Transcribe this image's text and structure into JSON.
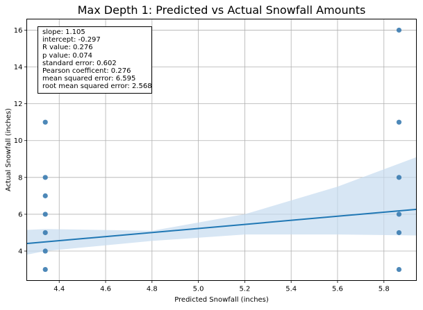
{
  "chart_data": {
    "type": "scatter",
    "title": "Max Depth 1: Predicted vs Actual Snowfall Amounts",
    "xlabel": "Predicted Snowfall (inches)",
    "ylabel": "Actual Snowfall (inches)",
    "xlim": [
      4.26,
      5.94
    ],
    "ylim": [
      2.4,
      16.6
    ],
    "xticks": [
      "4.4",
      "4.6",
      "4.8",
      "5.0",
      "5.2",
      "5.4",
      "5.6",
      "5.8"
    ],
    "yticks": [
      "4",
      "6",
      "8",
      "10",
      "12",
      "14",
      "16"
    ],
    "grid": true,
    "points": [
      {
        "x": 4.34,
        "y": 11
      },
      {
        "x": 4.34,
        "y": 8
      },
      {
        "x": 4.34,
        "y": 7
      },
      {
        "x": 4.34,
        "y": 6
      },
      {
        "x": 4.34,
        "y": 5
      },
      {
        "x": 4.34,
        "y": 4
      },
      {
        "x": 4.34,
        "y": 3
      },
      {
        "x": 5.865,
        "y": 16
      },
      {
        "x": 5.865,
        "y": 11
      },
      {
        "x": 5.865,
        "y": 8
      },
      {
        "x": 5.865,
        "y": 6
      },
      {
        "x": 5.865,
        "y": 5
      },
      {
        "x": 5.865,
        "y": 3
      }
    ],
    "regression": {
      "slope": 1.105,
      "intercept": -0.297
    },
    "confidence_band": [
      {
        "x": 4.26,
        "lo": 3.8,
        "hi": 5.15
      },
      {
        "x": 4.34,
        "lo": 4.0,
        "hi": 5.2
      },
      {
        "x": 4.8,
        "lo": 4.55,
        "hi": 5.1
      },
      {
        "x": 5.2,
        "lo": 4.9,
        "hi": 6.0
      },
      {
        "x": 5.6,
        "lo": 4.9,
        "hi": 7.5
      },
      {
        "x": 5.94,
        "lo": 4.85,
        "hi": 9.1
      }
    ],
    "colors": {
      "points": "#3a7bb0",
      "line": "#1f77b4",
      "band": "#c6dbef",
      "grid": "#b0b0b0"
    },
    "stats": [
      "slope: 1.105",
      "intercept: -0.297",
      "R value: 0.276",
      "p value: 0.074",
      "standard error: 0.602",
      "Pearson coefficent: 0.276",
      "mean squared error: 6.595",
      "root mean squared error: 2.568"
    ]
  }
}
